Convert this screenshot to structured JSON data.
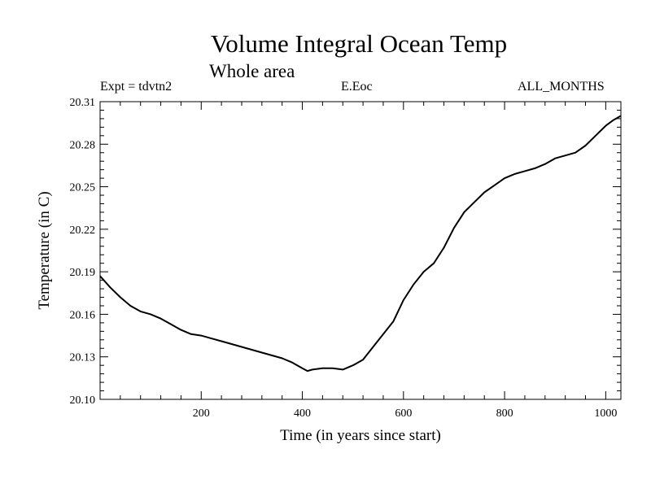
{
  "chart_data": {
    "type": "line",
    "title": "Volume Integral Ocean Temp",
    "subtitle": "Whole area",
    "experiment_label": "Expt = tdvtn2",
    "run_label": "E.Eoc",
    "months_label": "ALL_MONTHS",
    "xlabel": "Time (in years since start)",
    "ylabel": "Temperature (in C)",
    "xlim": [
      0,
      1030
    ],
    "ylim": [
      20.1,
      20.31
    ],
    "x_ticks": [
      200,
      400,
      600,
      800,
      1000
    ],
    "x_tick_labels": [
      "200",
      "400",
      "600",
      "800",
      "1000"
    ],
    "y_ticks": [
      20.1,
      20.13,
      20.16,
      20.19,
      20.22,
      20.25,
      20.28,
      20.31
    ],
    "y_tick_labels": [
      "20.10",
      "20.13",
      "20.16",
      "20.19",
      "20.22",
      "20.25",
      "20.28",
      "20.31"
    ],
    "grid": false,
    "series": [
      {
        "name": "Volume integral ocean temperature",
        "color": "#000000",
        "x": [
          0,
          20,
          40,
          60,
          80,
          100,
          120,
          140,
          160,
          180,
          200,
          220,
          240,
          260,
          280,
          300,
          320,
          340,
          360,
          380,
          400,
          410,
          420,
          440,
          460,
          480,
          500,
          520,
          540,
          560,
          580,
          600,
          620,
          640,
          660,
          680,
          700,
          720,
          740,
          760,
          780,
          800,
          820,
          840,
          860,
          880,
          900,
          920,
          940,
          960,
          980,
          1000,
          1015,
          1030
        ],
        "values": [
          20.187,
          20.179,
          20.172,
          20.166,
          20.162,
          20.16,
          20.157,
          20.153,
          20.149,
          20.146,
          20.145,
          20.143,
          20.141,
          20.139,
          20.137,
          20.135,
          20.133,
          20.131,
          20.129,
          20.126,
          20.122,
          20.12,
          20.121,
          20.122,
          20.122,
          20.121,
          20.124,
          20.128,
          20.137,
          20.146,
          20.155,
          20.17,
          20.181,
          20.19,
          20.196,
          20.207,
          20.221,
          20.232,
          20.239,
          20.246,
          20.251,
          20.256,
          20.259,
          20.261,
          20.263,
          20.266,
          20.27,
          20.272,
          20.274,
          20.279,
          20.286,
          20.293,
          20.297,
          20.3
        ]
      }
    ]
  }
}
